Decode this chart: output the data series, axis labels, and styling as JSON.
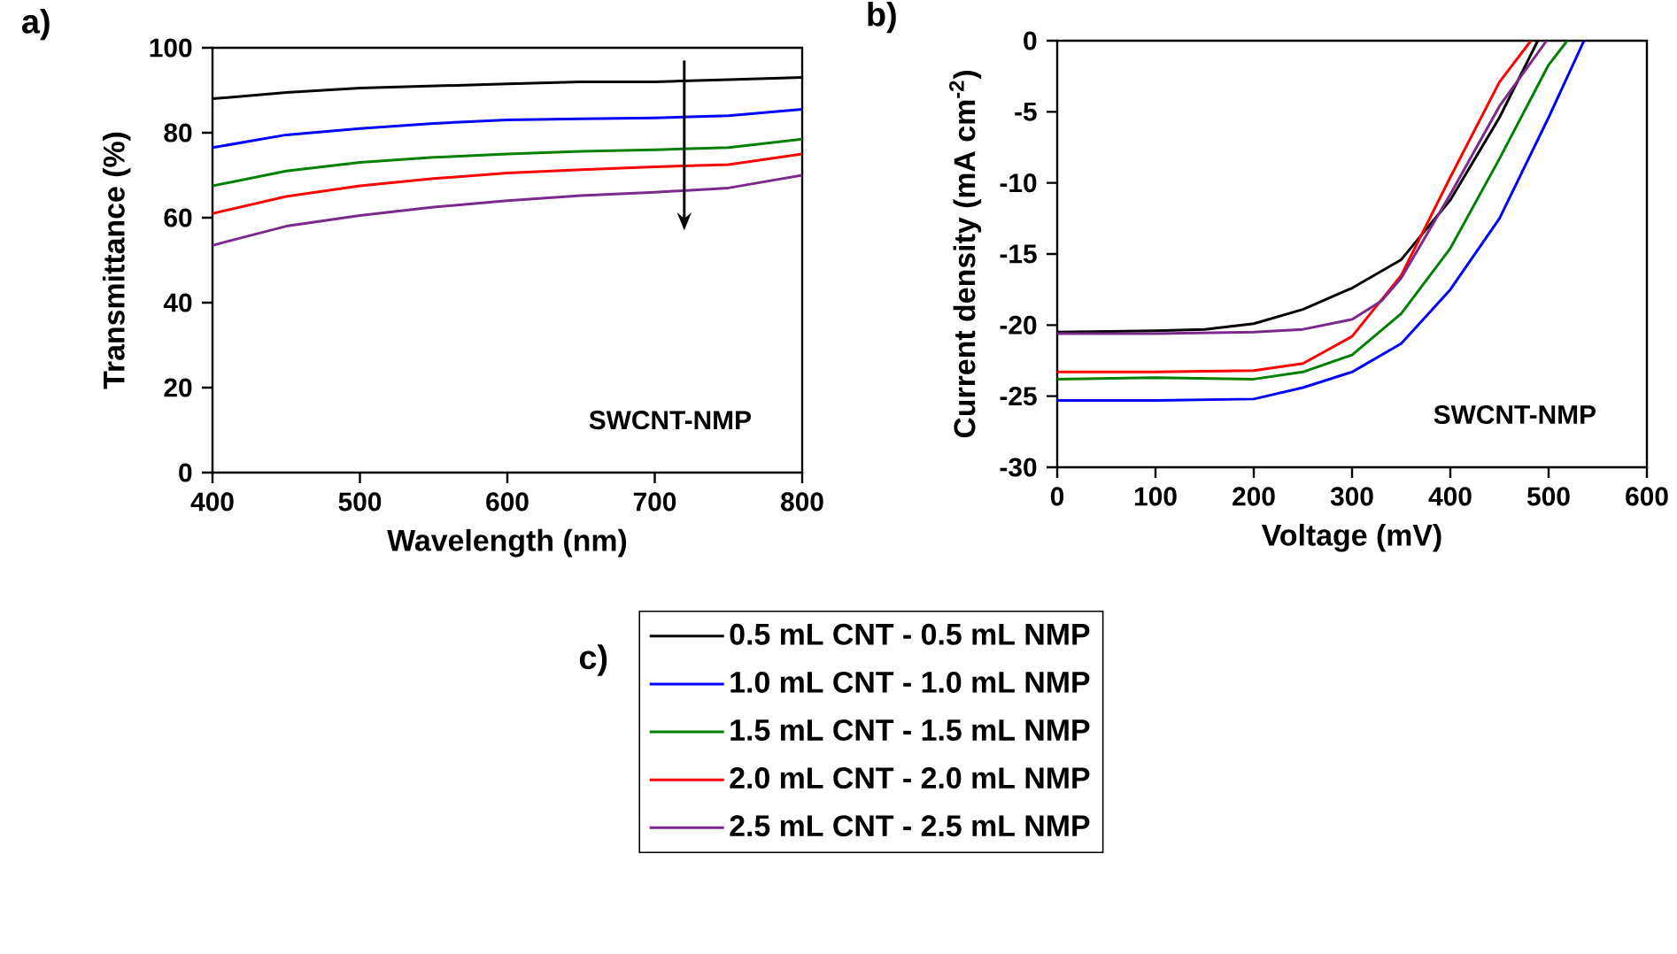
{
  "chart_data": [
    {
      "type": "line",
      "title": "a)",
      "xlabel": "Wavelength (nm)",
      "ylabel": "Transmittance (%)",
      "legend_title": "c)",
      "legend": "bottom",
      "annotations": [
        "SWCNT-NMP"
      ],
      "xlim": [
        400,
        800
      ],
      "ylim": [
        0,
        100
      ],
      "xticks": [
        400,
        500,
        600,
        700,
        800
      ],
      "yticks": [
        0,
        20,
        40,
        60,
        80,
        100
      ],
      "series": [
        {
          "name": "0.5 mL CNT - 0.5 mL NMP",
          "color": "#000000",
          "x": [
            400,
            450,
            500,
            550,
            600,
            650,
            700,
            750,
            800
          ],
          "values": [
            88,
            89.5,
            90.5,
            91,
            91.5,
            92,
            92,
            92.5,
            93
          ]
        },
        {
          "name": "1.0 mL CNT - 1.0 mL NMP",
          "color": "#0000ff",
          "x": [
            400,
            450,
            500,
            550,
            600,
            650,
            700,
            750,
            800
          ],
          "values": [
            76.5,
            79.5,
            81,
            82.2,
            83,
            83.3,
            83.5,
            84,
            85.5
          ]
        },
        {
          "name": "1.5 mL CNT - 1.5 mL NMP",
          "color": "#008000",
          "x": [
            400,
            450,
            500,
            550,
            600,
            650,
            700,
            750,
            800
          ],
          "values": [
            67.5,
            71,
            73,
            74.2,
            75,
            75.6,
            76,
            76.5,
            78.5
          ]
        },
        {
          "name": "2.0 mL CNT - 2.0 mL NMP",
          "color": "#ff0000",
          "x": [
            400,
            450,
            500,
            550,
            600,
            650,
            700,
            750,
            800
          ],
          "values": [
            61,
            65,
            67.5,
            69.2,
            70.5,
            71.3,
            72,
            72.5,
            75
          ]
        },
        {
          "name": "2.5 mL CNT - 2.5 mL NMP",
          "color": "#7b2a8c",
          "x": [
            400,
            450,
            500,
            550,
            600,
            650,
            700,
            750,
            800
          ],
          "values": [
            53.5,
            58,
            60.5,
            62.5,
            64,
            65.2,
            66,
            67,
            70
          ]
        }
      ]
    },
    {
      "type": "line",
      "title": "b)",
      "xlabel": "Voltage (mV)",
      "ylabel": "Current density (mA cm$^{-2}$)",
      "annotations": [
        "SWCNT-NMP"
      ],
      "xlim": [
        0,
        600
      ],
      "ylim": [
        -30,
        0
      ],
      "xticks": [
        0,
        100,
        200,
        300,
        400,
        500,
        600
      ],
      "yticks": [
        -30,
        -25,
        -20,
        -15,
        -10,
        -5,
        0
      ],
      "series": [
        {
          "color": "#000000",
          "x": [
            0,
            100,
            150,
            200,
            250,
            300,
            350,
            400,
            450,
            489
          ],
          "values": [
            -20.5,
            -20.4,
            -20.3,
            -19.9,
            -18.9,
            -17.4,
            -15.4,
            -11.2,
            -5.4,
            0
          ]
        },
        {
          "color": "#0000ff",
          "x": [
            0,
            100,
            200,
            250,
            300,
            350,
            400,
            450,
            500,
            536
          ],
          "values": [
            -25.3,
            -25.3,
            -25.2,
            -24.4,
            -23.3,
            -21.3,
            -17.5,
            -12.5,
            -5.4,
            0
          ]
        },
        {
          "color": "#008000",
          "x": [
            0,
            100,
            200,
            250,
            300,
            350,
            400,
            450,
            500,
            519
          ],
          "values": [
            -23.8,
            -23.7,
            -23.8,
            -23.3,
            -22.1,
            -19.2,
            -14.6,
            -8.3,
            -1.7,
            0
          ]
        },
        {
          "color": "#ff0000",
          "x": [
            0,
            100,
            200,
            250,
            300,
            350,
            400,
            450,
            482
          ],
          "values": [
            -23.3,
            -23.3,
            -23.2,
            -22.7,
            -20.8,
            -16.5,
            -9.6,
            -2.9,
            0
          ]
        },
        {
          "color": "#7b2a8c",
          "x": [
            0,
            100,
            200,
            250,
            300,
            330,
            350,
            400,
            450,
            498
          ],
          "values": [
            -20.6,
            -20.6,
            -20.5,
            -20.3,
            -19.6,
            -18.3,
            -16.7,
            -10.8,
            -4.6,
            0
          ]
        }
      ]
    }
  ]
}
